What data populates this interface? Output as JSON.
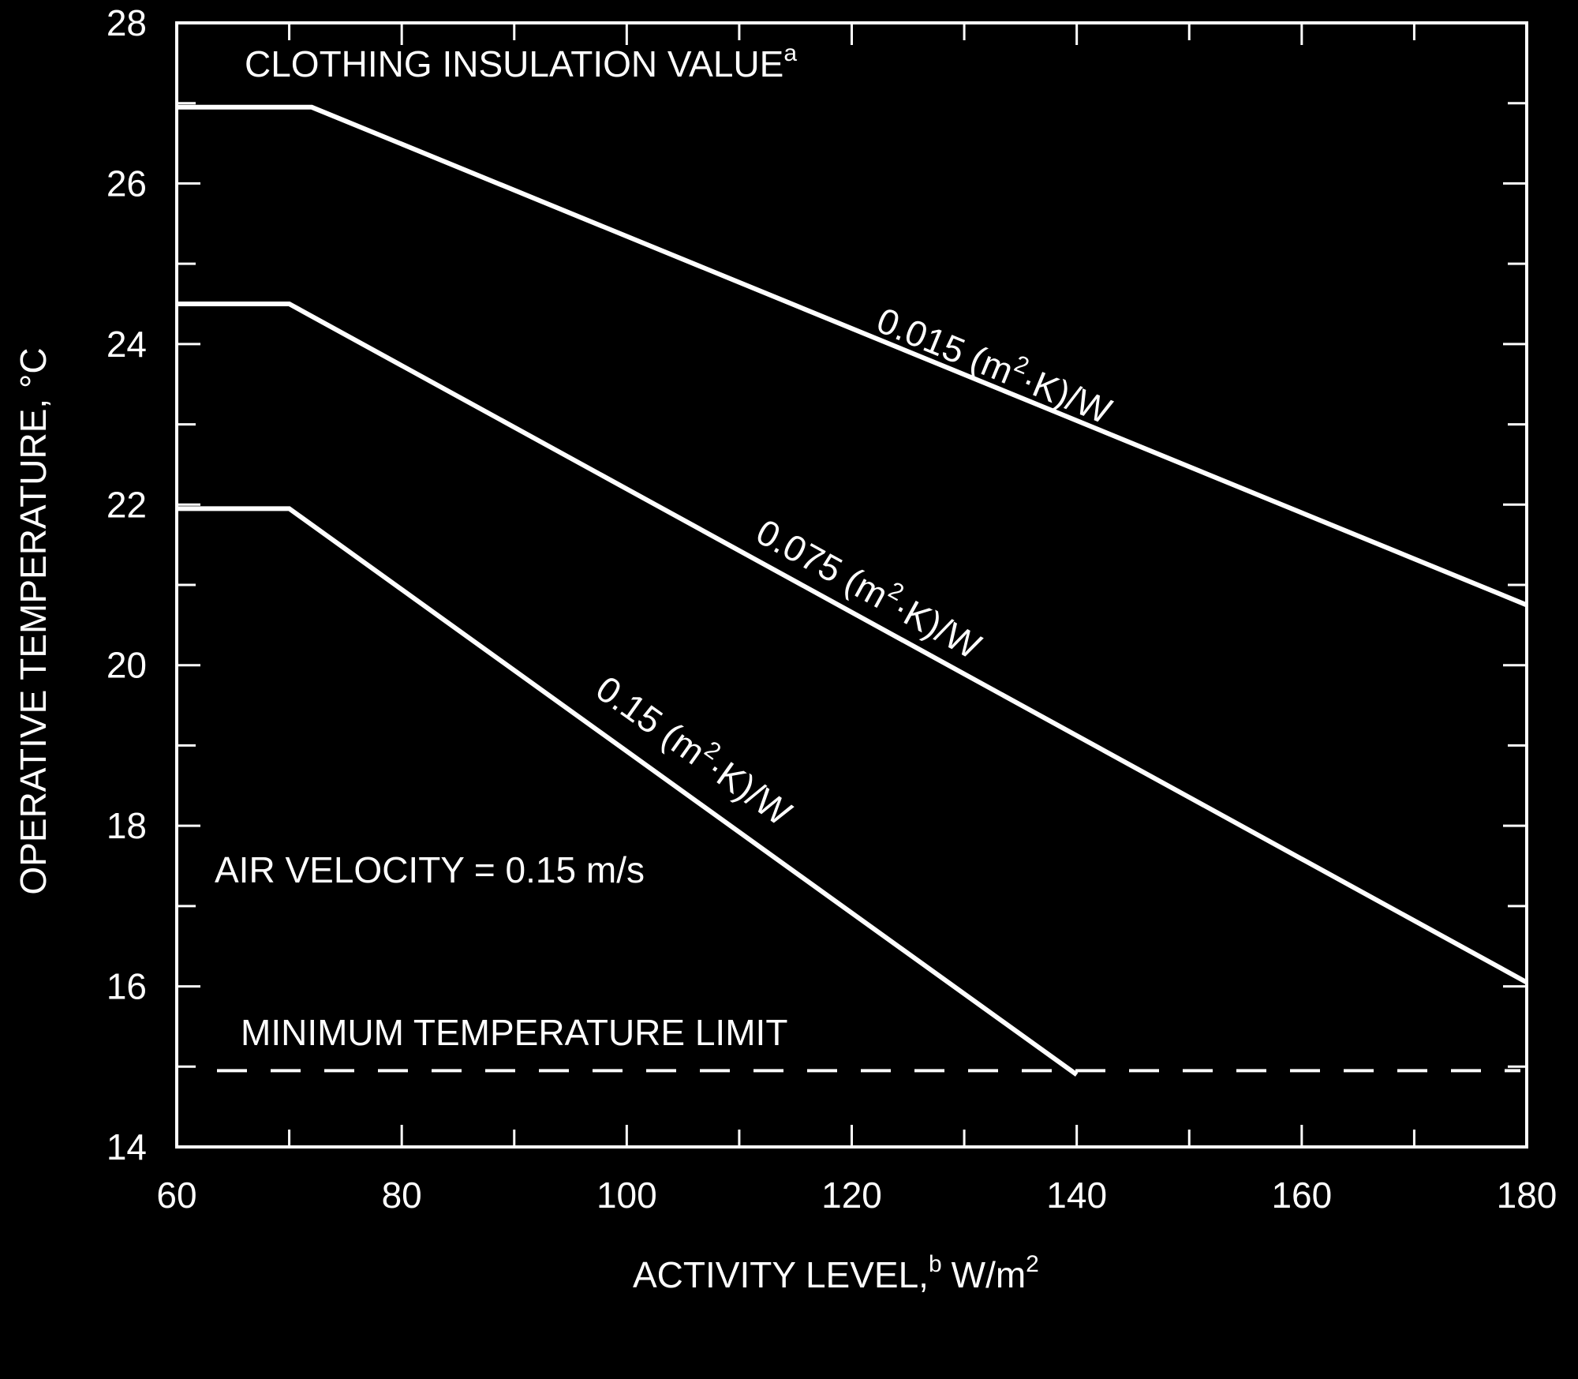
{
  "colors": {
    "background": "#000000",
    "foreground": "#ffffff"
  },
  "chart_data": {
    "type": "line",
    "title": "",
    "xlabel": "ACTIVITY LEVEL,",
    "xlabel_superscript": "b",
    "xlabel_unit": "W/m",
    "xlabel_unit_superscript": "2",
    "ylabel": "OPERATIVE TEMPERATURE, °C",
    "xlim": [
      60,
      180
    ],
    "ylim": [
      14,
      28
    ],
    "xticks": [
      60,
      80,
      100,
      120,
      140,
      160,
      180
    ],
    "yticks": [
      14,
      16,
      18,
      20,
      22,
      24,
      26,
      28
    ],
    "x_minor_step": 10,
    "y_minor_step": 1,
    "grid": false,
    "series": [
      {
        "name": "0.015 (m²·K)/W",
        "label_parts": {
          "pre": "0.015 (m",
          "sup": "2",
          "post": "·K)/W"
        },
        "x": [
          60,
          72,
          180
        ],
        "y": [
          26.95,
          26.95,
          20.75
        ]
      },
      {
        "name": "0.075 (m²·K)/W",
        "label_parts": {
          "pre": "0.075 (m",
          "sup": "2",
          "post": "·K)/W"
        },
        "x": [
          60,
          70,
          180
        ],
        "y": [
          24.5,
          24.5,
          16.05
        ]
      },
      {
        "name": "0.15 (m²·K)/W",
        "label_parts": {
          "pre": "0.15 (m",
          "sup": "2",
          "post": "·K)/W"
        },
        "x": [
          60,
          70,
          140
        ],
        "y": [
          21.95,
          21.95,
          14.9
        ]
      }
    ],
    "reference_line": {
      "label": "MINIMUM TEMPERATURE LIMIT",
      "y": 14.95,
      "style": "dashed"
    },
    "annotations": {
      "clothing": {
        "text": "CLOTHING INSULATION VALUE",
        "sup": "a"
      },
      "air_velocity": {
        "text": "AIR VELOCITY = 0.15 m/s"
      }
    }
  }
}
